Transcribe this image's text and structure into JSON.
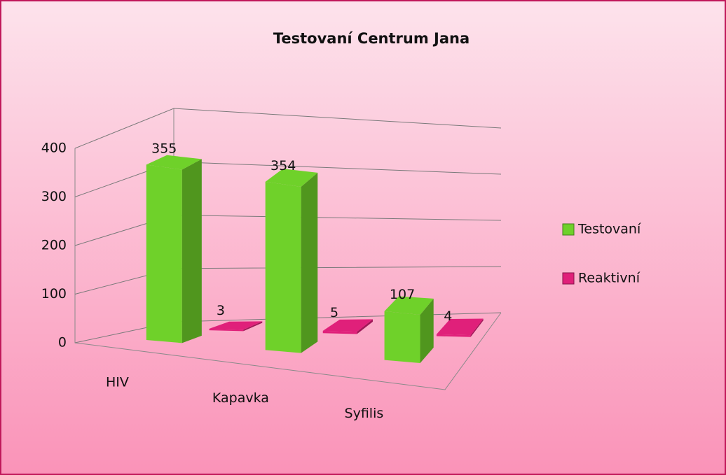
{
  "chart_data": {
    "type": "bar3d",
    "title": "Testovaní Centrum Jana",
    "categories": [
      "HIV",
      "Kapavka",
      "Syfilis"
    ],
    "series": [
      {
        "name": "Testovaní",
        "color": "#6fd12a",
        "values": [
          355,
          354,
          107
        ]
      },
      {
        "name": "Reaktivní",
        "color": "#e0207a",
        "values": [
          3,
          5,
          4
        ]
      }
    ],
    "ylim": [
      0,
      400
    ],
    "yticks": [
      0,
      100,
      200,
      300,
      400
    ],
    "grid": true,
    "legend": "right"
  }
}
